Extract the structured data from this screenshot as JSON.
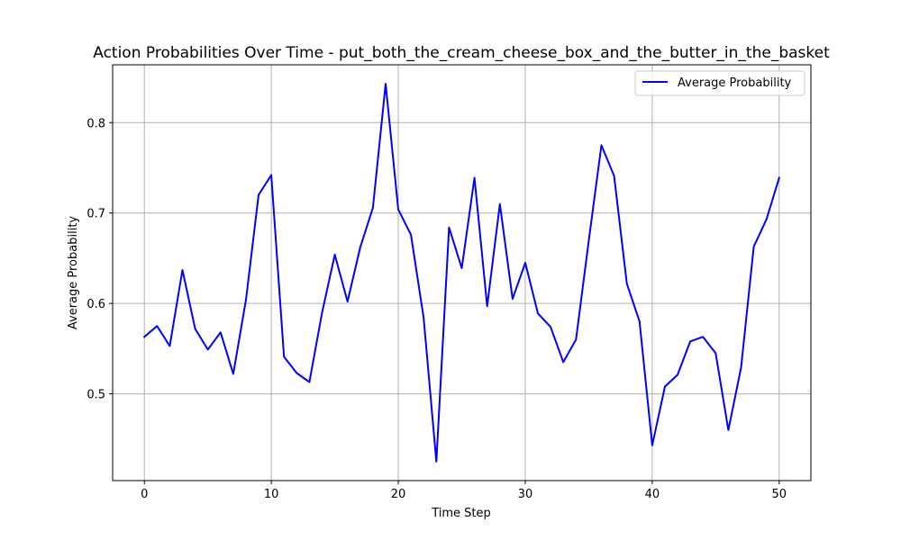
{
  "chart_data": {
    "type": "line",
    "title": "Action Probabilities Over Time - put_both_the_cream_cheese_box_and_the_butter_in_the_basket",
    "xlabel": "Time Step",
    "ylabel": "Average Probability",
    "xlim": [
      -2.5,
      52.5
    ],
    "ylim": [
      0.404,
      0.864
    ],
    "xticks": [
      0,
      10,
      20,
      30,
      40,
      50
    ],
    "xtick_labels": [
      "0",
      "10",
      "20",
      "30",
      "40",
      "50"
    ],
    "yticks": [
      0.5,
      0.6,
      0.7,
      0.8
    ],
    "ytick_labels": [
      "0.5",
      "0.6",
      "0.7",
      "0.8"
    ],
    "grid": true,
    "legend_position": "top-right",
    "series": [
      {
        "name": "Average Probability",
        "color": "#0000ff",
        "x": [
          0,
          1,
          2,
          3,
          4,
          5,
          6,
          7,
          8,
          9,
          10,
          11,
          12,
          13,
          14,
          15,
          16,
          17,
          18,
          19,
          20,
          21,
          22,
          23,
          24,
          25,
          26,
          27,
          28,
          29,
          30,
          31,
          32,
          33,
          34,
          35,
          36,
          37,
          38,
          39,
          40,
          41,
          42,
          43,
          44,
          45,
          46,
          47,
          48,
          49,
          50
        ],
        "y": [
          0.563,
          0.575,
          0.553,
          0.637,
          0.572,
          0.549,
          0.568,
          0.522,
          0.604,
          0.72,
          0.742,
          0.541,
          0.523,
          0.513,
          0.59,
          0.654,
          0.602,
          0.662,
          0.706,
          0.843,
          0.704,
          0.676,
          0.584,
          0.425,
          0.684,
          0.639,
          0.739,
          0.597,
          0.71,
          0.605,
          0.645,
          0.589,
          0.574,
          0.535,
          0.56,
          0.669,
          0.775,
          0.741,
          0.622,
          0.58,
          0.443,
          0.508,
          0.521,
          0.558,
          0.563,
          0.545,
          0.46,
          0.529,
          0.663,
          0.693,
          0.739
        ]
      }
    ]
  }
}
